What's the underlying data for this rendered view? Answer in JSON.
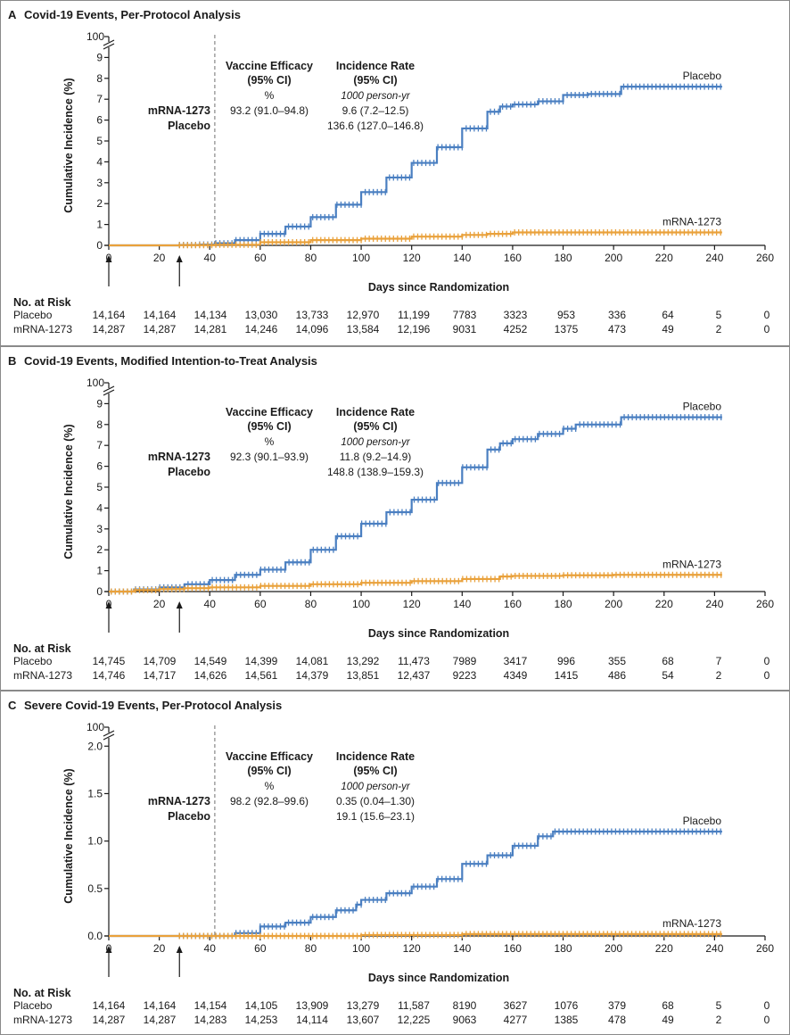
{
  "colors": {
    "placebo": "#4a7fc1",
    "mrna": "#e9a13b",
    "axis": "#1a1a1a",
    "dashed": "#888888"
  },
  "chart_data": [
    {
      "type": "line",
      "panel_letter": "A",
      "title": "Covid-19 Events, Per-Protocol Analysis",
      "xlabel": "Days since Randomization",
      "ylabel": "Cumulative Incidence (%)",
      "xlim": [
        0,
        260
      ],
      "ylim": [
        0,
        10
      ],
      "y_break_label": "100",
      "yticks": [
        0,
        1,
        2,
        3,
        4,
        5,
        6,
        7,
        8,
        9
      ],
      "xticks": [
        0,
        20,
        40,
        60,
        80,
        100,
        120,
        140,
        160,
        180,
        200,
        220,
        240,
        260
      ],
      "dashed_x": 42,
      "arrows_x": [
        0,
        28
      ],
      "efficacy": {
        "ve_header1": "Vaccine Efficacy",
        "ve_header2": "(95% CI)",
        "ve_unit": "%",
        "ve_value": "93.2 (91.0–94.8)",
        "ir_header1": "Incidence Rate",
        "ir_header2": "(95% CI)",
        "ir_unit": "1000 person-yr",
        "ir_mrna": "9.6 (7.2–12.5)",
        "ir_placebo": "136.6 (127.0–146.8)",
        "label_mrna": "mRNA-1273",
        "label_placebo": "Placebo"
      },
      "series": [
        {
          "name": "Placebo",
          "x": [
            0,
            28,
            36,
            42,
            50,
            60,
            70,
            80,
            90,
            100,
            110,
            120,
            130,
            140,
            150,
            155,
            160,
            170,
            180,
            190,
            200,
            203,
            210,
            220,
            230,
            240,
            243
          ],
          "values": [
            0,
            0.02,
            0.04,
            0.1,
            0.25,
            0.55,
            0.9,
            1.35,
            1.95,
            2.55,
            3.25,
            3.95,
            4.7,
            5.6,
            6.4,
            6.65,
            6.75,
            6.9,
            7.2,
            7.25,
            7.25,
            7.6,
            7.6,
            7.6,
            7.6,
            7.6,
            7.6
          ]
        },
        {
          "name": "mRNA-1273",
          "x": [
            0,
            28,
            42,
            60,
            80,
            100,
            120,
            140,
            150,
            160,
            180,
            200,
            220,
            240,
            243
          ],
          "values": [
            0,
            0.01,
            0.03,
            0.15,
            0.25,
            0.32,
            0.42,
            0.5,
            0.55,
            0.62,
            0.62,
            0.62,
            0.62,
            0.62,
            0.62
          ]
        }
      ],
      "risk": {
        "header": "No. at Risk",
        "rows": [
          {
            "label": "Placebo",
            "values": [
              "14,164",
              "14,164",
              "14,134",
              "13,030",
              "13,733",
              "12,970",
              "11,199",
              "7783",
              "3323",
              "953",
              "336",
              "64",
              "5",
              "0"
            ]
          },
          {
            "label": "mRNA-1273",
            "values": [
              "14,287",
              "14,287",
              "14,281",
              "14,246",
              "14,096",
              "13,584",
              "12,196",
              "9031",
              "4252",
              "1375",
              "473",
              "49",
              "2",
              "0"
            ]
          }
        ]
      }
    },
    {
      "type": "line",
      "panel_letter": "B",
      "title": "Covid-19 Events, Modified Intention-to-Treat Analysis",
      "xlabel": "Days since Randomization",
      "ylabel": "Cumulative Incidence (%)",
      "xlim": [
        0,
        260
      ],
      "ylim": [
        0,
        10
      ],
      "y_break_label": "100",
      "yticks": [
        0,
        1,
        2,
        3,
        4,
        5,
        6,
        7,
        8,
        9
      ],
      "xticks": [
        0,
        20,
        40,
        60,
        80,
        100,
        120,
        140,
        160,
        180,
        200,
        220,
        240,
        260
      ],
      "dashed_x": null,
      "arrows_x": [
        0,
        28
      ],
      "efficacy": {
        "ve_header1": "Vaccine Efficacy",
        "ve_header2": "(95% CI)",
        "ve_unit": "%",
        "ve_value": "92.3 (90.1–93.9)",
        "ir_header1": "Incidence Rate",
        "ir_header2": "(95% CI)",
        "ir_unit": "1000 person-yr",
        "ir_mrna": "11.8 (9.2–14.9)",
        "ir_placebo": "148.8 (138.9–159.3)",
        "label_mrna": "mRNA-1273",
        "label_placebo": "Placebo"
      },
      "series": [
        {
          "name": "Placebo",
          "x": [
            0,
            10,
            20,
            30,
            40,
            50,
            60,
            70,
            80,
            90,
            100,
            110,
            120,
            130,
            140,
            150,
            155,
            160,
            170,
            180,
            185,
            200,
            203,
            210,
            220,
            230,
            240,
            243
          ],
          "values": [
            0,
            0.1,
            0.2,
            0.35,
            0.55,
            0.8,
            1.05,
            1.4,
            2.0,
            2.65,
            3.25,
            3.8,
            4.4,
            5.2,
            5.95,
            6.8,
            7.1,
            7.3,
            7.55,
            7.8,
            8.0,
            8.0,
            8.35,
            8.35,
            8.35,
            8.35,
            8.35,
            8.35
          ]
        },
        {
          "name": "mRNA-1273",
          "x": [
            0,
            10,
            20,
            30,
            40,
            60,
            80,
            100,
            120,
            140,
            155,
            160,
            180,
            200,
            220,
            240,
            243
          ],
          "values": [
            0,
            0.07,
            0.12,
            0.16,
            0.2,
            0.27,
            0.35,
            0.42,
            0.5,
            0.6,
            0.72,
            0.75,
            0.78,
            0.8,
            0.8,
            0.8,
            0.8
          ]
        }
      ],
      "risk": {
        "header": "No. at Risk",
        "rows": [
          {
            "label": "Placebo",
            "values": [
              "14,745",
              "14,709",
              "14,549",
              "14,399",
              "14,081",
              "13,292",
              "11,473",
              "7989",
              "3417",
              "996",
              "355",
              "68",
              "7",
              "0"
            ]
          },
          {
            "label": "mRNA-1273",
            "values": [
              "14,746",
              "14,717",
              "14,626",
              "14,561",
              "14,379",
              "13,851",
              "12,437",
              "9223",
              "4349",
              "1415",
              "486",
              "54",
              "2",
              "0"
            ]
          }
        ]
      }
    },
    {
      "type": "line",
      "panel_letter": "C",
      "title": "Severe Covid-19 Events, Per-Protocol Analysis",
      "xlabel": "Days since Randomization",
      "ylabel": "Cumulative Incidence (%)",
      "xlim": [
        0,
        260
      ],
      "ylim": [
        0,
        2.2
      ],
      "y_break_label": "100",
      "yticks": [
        0,
        0.5,
        1.0,
        1.5,
        2.0
      ],
      "ytick_labels": [
        "0.0",
        "0.5",
        "1.0",
        "1.5",
        "2.0"
      ],
      "xticks": [
        0,
        20,
        40,
        60,
        80,
        100,
        120,
        140,
        160,
        180,
        200,
        220,
        240,
        260
      ],
      "dashed_x": 42,
      "arrows_x": [
        0,
        28
      ],
      "efficacy": {
        "ve_header1": "Vaccine Efficacy",
        "ve_header2": "(95% CI)",
        "ve_unit": "%",
        "ve_value": "98.2 (92.8–99.6)",
        "ir_header1": "Incidence Rate",
        "ir_header2": "(95% CI)",
        "ir_unit": "1000 person-yr",
        "ir_mrna": "0.35 (0.04–1.30)",
        "ir_placebo": "19.1 (15.6–23.1)",
        "label_mrna": "mRNA-1273",
        "label_placebo": "Placebo"
      },
      "series": [
        {
          "name": "Placebo",
          "x": [
            0,
            42,
            50,
            60,
            70,
            80,
            90,
            98,
            100,
            110,
            120,
            130,
            140,
            150,
            160,
            170,
            176,
            180,
            190,
            200,
            210,
            220,
            230,
            240,
            243
          ],
          "values": [
            0,
            0,
            0.03,
            0.1,
            0.14,
            0.2,
            0.27,
            0.33,
            0.38,
            0.45,
            0.52,
            0.6,
            0.76,
            0.85,
            0.95,
            1.05,
            1.1,
            1.1,
            1.1,
            1.1,
            1.1,
            1.1,
            1.1,
            1.1,
            1.1
          ]
        },
        {
          "name": "mRNA-1273",
          "x": [
            0,
            42,
            100,
            140,
            243
          ],
          "values": [
            0,
            0,
            0.01,
            0.02,
            0.02
          ]
        }
      ],
      "risk": {
        "header": "No. at Risk",
        "rows": [
          {
            "label": "Placebo",
            "values": [
              "14,164",
              "14,164",
              "14,154",
              "14,105",
              "13,909",
              "13,279",
              "11,587",
              "8190",
              "3627",
              "1076",
              "379",
              "68",
              "5",
              "0"
            ]
          },
          {
            "label": "mRNA-1273",
            "values": [
              "14,287",
              "14,287",
              "14,283",
              "14,253",
              "14,114",
              "13,607",
              "12,225",
              "9063",
              "4277",
              "1385",
              "478",
              "49",
              "2",
              "0"
            ]
          }
        ]
      }
    }
  ]
}
